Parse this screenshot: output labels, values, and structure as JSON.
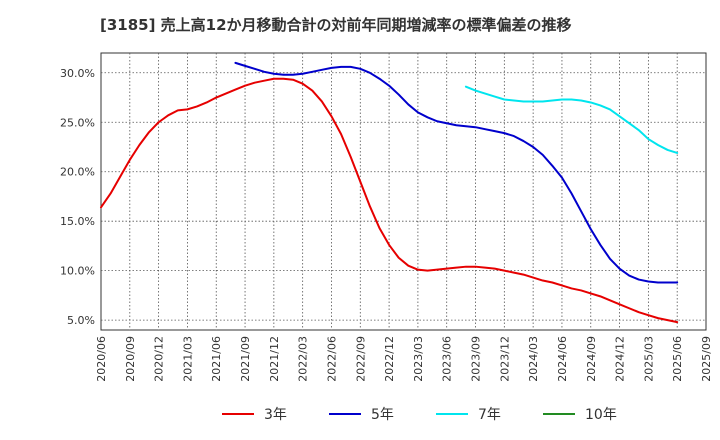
{
  "chart_data": {
    "type": "line",
    "title": "[3185]  売上高12か月移動合計の対前年同期増減率の標準偏差の推移",
    "xlabel": "",
    "ylabel": "",
    "y_unit": "%",
    "ylim": [
      4.0,
      32.0
    ],
    "y_ticks": [
      5.0,
      10.0,
      15.0,
      20.0,
      25.0,
      30.0
    ],
    "y_tick_labels": [
      "5.0%",
      "10.0%",
      "15.0%",
      "20.0%",
      "25.0%",
      "30.0%"
    ],
    "x_tick_labels": [
      "2020/06",
      "2020/09",
      "2020/12",
      "2021/03",
      "2021/06",
      "2021/09",
      "2021/12",
      "2022/03",
      "2022/06",
      "2022/09",
      "2022/12",
      "2023/03",
      "2023/06",
      "2023/09",
      "2023/12",
      "2024/03",
      "2024/06",
      "2024/09",
      "2024/12",
      "2025/03",
      "2025/06",
      "2025/09"
    ],
    "grid": true,
    "legend_position": "bottom",
    "series": [
      {
        "name": "3年",
        "color": "#e60000",
        "values": [
          [
            "2020/06",
            16.4
          ],
          [
            "2020/07",
            17.8
          ],
          [
            "2020/08",
            19.5
          ],
          [
            "2020/09",
            21.2
          ],
          [
            "2020/10",
            22.7
          ],
          [
            "2020/11",
            24.0
          ],
          [
            "2020/12",
            25.0
          ],
          [
            "2021/01",
            25.7
          ],
          [
            "2021/02",
            26.2
          ],
          [
            "2021/03",
            26.3
          ],
          [
            "2021/04",
            26.6
          ],
          [
            "2021/05",
            27.0
          ],
          [
            "2021/06",
            27.5
          ],
          [
            "2021/07",
            27.9
          ],
          [
            "2021/08",
            28.3
          ],
          [
            "2021/09",
            28.7
          ],
          [
            "2021/10",
            29.0
          ],
          [
            "2021/11",
            29.2
          ],
          [
            "2021/12",
            29.4
          ],
          [
            "2022/01",
            29.4
          ],
          [
            "2022/02",
            29.3
          ],
          [
            "2022/03",
            28.9
          ],
          [
            "2022/04",
            28.2
          ],
          [
            "2022/05",
            27.1
          ],
          [
            "2022/06",
            25.6
          ],
          [
            "2022/07",
            23.8
          ],
          [
            "2022/08",
            21.5
          ],
          [
            "2022/09",
            19.0
          ],
          [
            "2022/10",
            16.5
          ],
          [
            "2022/11",
            14.3
          ],
          [
            "2022/12",
            12.6
          ],
          [
            "2023/01",
            11.3
          ],
          [
            "2023/02",
            10.5
          ],
          [
            "2023/03",
            10.1
          ],
          [
            "2023/04",
            10.0
          ],
          [
            "2023/05",
            10.1
          ],
          [
            "2023/06",
            10.2
          ],
          [
            "2023/07",
            10.3
          ],
          [
            "2023/08",
            10.4
          ],
          [
            "2023/09",
            10.4
          ],
          [
            "2023/10",
            10.3
          ],
          [
            "2023/11",
            10.2
          ],
          [
            "2023/12",
            10.0
          ],
          [
            "2024/01",
            9.8
          ],
          [
            "2024/02",
            9.6
          ],
          [
            "2024/03",
            9.3
          ],
          [
            "2024/04",
            9.0
          ],
          [
            "2024/05",
            8.8
          ],
          [
            "2024/06",
            8.5
          ],
          [
            "2024/07",
            8.2
          ],
          [
            "2024/08",
            8.0
          ],
          [
            "2024/09",
            7.7
          ],
          [
            "2024/10",
            7.4
          ],
          [
            "2024/11",
            7.0
          ],
          [
            "2024/12",
            6.6
          ],
          [
            "2025/01",
            6.2
          ],
          [
            "2025/02",
            5.8
          ],
          [
            "2025/03",
            5.5
          ],
          [
            "2025/04",
            5.2
          ],
          [
            "2025/05",
            5.0
          ],
          [
            "2025/06",
            4.8
          ]
        ]
      },
      {
        "name": "5年",
        "color": "#0000cc",
        "values": [
          [
            "2021/08",
            31.0
          ],
          [
            "2021/09",
            30.7
          ],
          [
            "2021/10",
            30.4
          ],
          [
            "2021/11",
            30.1
          ],
          [
            "2021/12",
            29.9
          ],
          [
            "2022/01",
            29.8
          ],
          [
            "2022/02",
            29.8
          ],
          [
            "2022/03",
            29.9
          ],
          [
            "2022/04",
            30.1
          ],
          [
            "2022/05",
            30.3
          ],
          [
            "2022/06",
            30.5
          ],
          [
            "2022/07",
            30.6
          ],
          [
            "2022/08",
            30.6
          ],
          [
            "2022/09",
            30.4
          ],
          [
            "2022/10",
            30.0
          ],
          [
            "2022/11",
            29.4
          ],
          [
            "2022/12",
            28.7
          ],
          [
            "2023/01",
            27.8
          ],
          [
            "2023/02",
            26.8
          ],
          [
            "2023/03",
            26.0
          ],
          [
            "2023/04",
            25.5
          ],
          [
            "2023/05",
            25.1
          ],
          [
            "2023/06",
            24.9
          ],
          [
            "2023/07",
            24.7
          ],
          [
            "2023/08",
            24.6
          ],
          [
            "2023/09",
            24.5
          ],
          [
            "2023/10",
            24.3
          ],
          [
            "2023/11",
            24.1
          ],
          [
            "2023/12",
            23.9
          ],
          [
            "2024/01",
            23.6
          ],
          [
            "2024/02",
            23.1
          ],
          [
            "2024/03",
            22.5
          ],
          [
            "2024/04",
            21.7
          ],
          [
            "2024/05",
            20.6
          ],
          [
            "2024/06",
            19.4
          ],
          [
            "2024/07",
            17.8
          ],
          [
            "2024/08",
            16.0
          ],
          [
            "2024/09",
            14.2
          ],
          [
            "2024/10",
            12.6
          ],
          [
            "2024/11",
            11.2
          ],
          [
            "2024/12",
            10.2
          ],
          [
            "2025/01",
            9.5
          ],
          [
            "2025/02",
            9.1
          ],
          [
            "2025/03",
            8.9
          ],
          [
            "2025/04",
            8.8
          ],
          [
            "2025/05",
            8.8
          ],
          [
            "2025/06",
            8.8
          ]
        ]
      },
      {
        "name": "7年",
        "color": "#00e5ee",
        "values": [
          [
            "2023/08",
            28.6
          ],
          [
            "2023/09",
            28.2
          ],
          [
            "2023/10",
            27.9
          ],
          [
            "2023/11",
            27.6
          ],
          [
            "2023/12",
            27.3
          ],
          [
            "2024/01",
            27.2
          ],
          [
            "2024/02",
            27.1
          ],
          [
            "2024/03",
            27.1
          ],
          [
            "2024/04",
            27.1
          ],
          [
            "2024/05",
            27.2
          ],
          [
            "2024/06",
            27.3
          ],
          [
            "2024/07",
            27.3
          ],
          [
            "2024/08",
            27.2
          ],
          [
            "2024/09",
            27.0
          ],
          [
            "2024/10",
            26.7
          ],
          [
            "2024/11",
            26.3
          ],
          [
            "2024/12",
            25.6
          ],
          [
            "2025/01",
            24.9
          ],
          [
            "2025/02",
            24.2
          ],
          [
            "2025/03",
            23.3
          ],
          [
            "2025/04",
            22.7
          ],
          [
            "2025/05",
            22.2
          ],
          [
            "2025/06",
            21.9
          ]
        ]
      },
      {
        "name": "10年",
        "color": "#228b22",
        "values": []
      }
    ]
  }
}
